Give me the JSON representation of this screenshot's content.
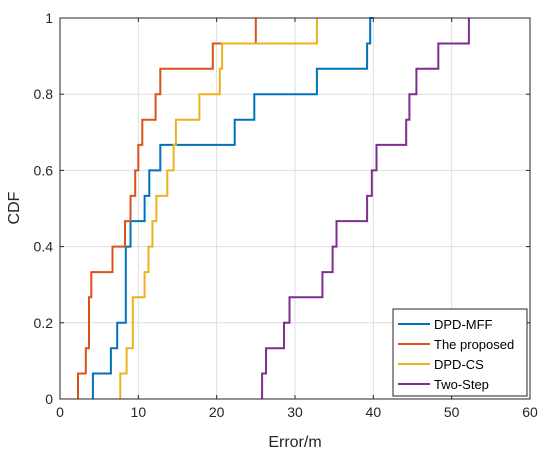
{
  "chart_data": {
    "type": "line",
    "step": true,
    "title": "",
    "xlabel": "Error/m",
    "ylabel": "CDF",
    "xlim": [
      0,
      60
    ],
    "ylim": [
      0,
      1
    ],
    "xticks": [
      0,
      10,
      20,
      30,
      40,
      50,
      60
    ],
    "yticks": [
      0,
      0.2,
      0.4,
      0.6,
      0.8,
      1
    ],
    "grid": true,
    "legend_position": "bottom-right",
    "series": [
      {
        "name": "DPD-MFF",
        "color": "#0072BD",
        "x": [
          4.2,
          6.5,
          7.3,
          8.4,
          9.0,
          10.8,
          11.4,
          12.8,
          22.3,
          24.8,
          32.8,
          39.2,
          39.6,
          40.0
        ],
        "y": [
          0.067,
          0.133,
          0.2,
          0.4,
          0.467,
          0.533,
          0.6,
          0.667,
          0.733,
          0.8,
          0.867,
          0.933,
          1.0,
          1.0
        ]
      },
      {
        "name": "The proposed",
        "color": "#D95319",
        "x": [
          2.3,
          3.3,
          3.7,
          4.0,
          6.7,
          8.3,
          9.0,
          9.6,
          10.0,
          10.5,
          11.4,
          12.2,
          12.5,
          12.8,
          19.5,
          20.0,
          25.0
        ],
        "y": [
          0.067,
          0.133,
          0.267,
          0.333,
          0.4,
          0.467,
          0.533,
          0.6,
          0.667,
          0.733,
          0.733,
          0.8,
          0.8,
          0.867,
          0.933,
          0.933,
          1.0
        ]
      },
      {
        "name": "DPD-CS",
        "color": "#EDB120",
        "x": [
          7.7,
          8.5,
          9.3,
          10.8,
          11.3,
          11.8,
          12.3,
          13.7,
          14.5,
          14.8,
          17.8,
          20.4,
          20.7,
          32.8
        ],
        "y": [
          0.067,
          0.133,
          0.267,
          0.333,
          0.4,
          0.467,
          0.533,
          0.6,
          0.667,
          0.733,
          0.8,
          0.867,
          0.933,
          1.0
        ]
      },
      {
        "name": "Two-Step",
        "color": "#7E2F8E",
        "x": [
          25.8,
          26.3,
          28.6,
          29.3,
          29.8,
          33.5,
          34.8,
          35.3,
          39.2,
          39.8,
          40.4,
          44.2,
          44.6,
          45.5,
          46.8,
          48.3,
          52.2
        ],
        "y": [
          0.067,
          0.133,
          0.2,
          0.267,
          0.267,
          0.333,
          0.4,
          0.467,
          0.533,
          0.6,
          0.667,
          0.733,
          0.8,
          0.867,
          0.867,
          0.933,
          1.0
        ]
      }
    ]
  }
}
